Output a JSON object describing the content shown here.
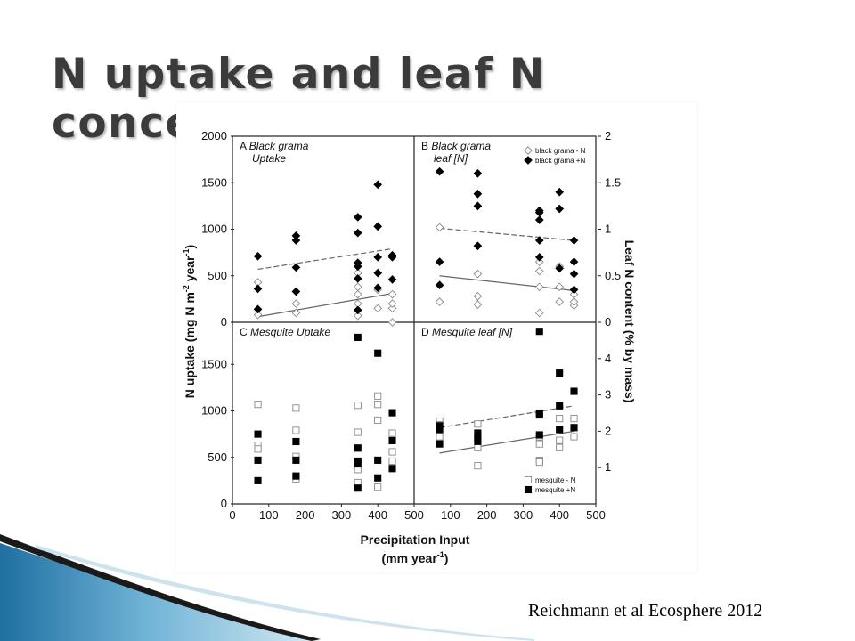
{
  "slide": {
    "title": "N uptake and leaf N concentration",
    "citation": "Reichmann et al Ecosphere 2012"
  },
  "chart_data": {
    "type": "scatter",
    "xlabel_line1": "Precipitation Input",
    "xlabel_line2": "(mm year",
    "xlabel_sup": "-1",
    "xlabel_end": ")",
    "ylabel_left": "N uptake (mg N m",
    "ylabel_left_sup1": "-2",
    "ylabel_left_mid": " year",
    "ylabel_left_sup2": "-1",
    "ylabel_left_end": ")",
    "ylabel_right": "Leaf N content (% by mass)",
    "x_ticks": [
      "0",
      "100",
      "200",
      "300",
      "400",
      "500"
    ],
    "xlim": [
      0,
      500
    ],
    "left_ticks_top": [
      "0",
      "500",
      "1000",
      "1500",
      "2000"
    ],
    "left_ticks_bottom": [
      "0",
      "500",
      "1000",
      "1500"
    ],
    "right_ticks_top": [
      "0",
      "0.5",
      "1",
      "1.5",
      "2"
    ],
    "right_ticks_bottom": [
      "1",
      "2",
      "3",
      "4"
    ],
    "panels": [
      {
        "id": "A",
        "letter": "A",
        "title_line1": "Black grama",
        "title_line2": "Uptake",
        "ylim": [
          0,
          2000
        ],
        "series": [
          {
            "name": "black grama - N",
            "marker": "open-diamond",
            "points": [
              [
                70,
                80
              ],
              [
                70,
                430
              ],
              [
                175,
                100
              ],
              [
                175,
                200
              ],
              [
                345,
                70
              ],
              [
                345,
                200
              ],
              [
                345,
                300
              ],
              [
                345,
                380
              ],
              [
                345,
                530
              ],
              [
                400,
                150
              ],
              [
                400,
                350
              ],
              [
                440,
                0
              ],
              [
                440,
                150
              ],
              [
                440,
                200
              ],
              [
                440,
                300
              ]
            ]
          },
          {
            "name": "black grama +N",
            "marker": "filled-diamond",
            "points": [
              [
                70,
                140
              ],
              [
                70,
                360
              ],
              [
                70,
                710
              ],
              [
                175,
                330
              ],
              [
                175,
                590
              ],
              [
                175,
                880
              ],
              [
                175,
                930
              ],
              [
                345,
                130
              ],
              [
                345,
                470
              ],
              [
                345,
                600
              ],
              [
                345,
                640
              ],
              [
                345,
                960
              ],
              [
                345,
                1130
              ],
              [
                400,
                370
              ],
              [
                400,
                530
              ],
              [
                400,
                700
              ],
              [
                400,
                1030
              ],
              [
                400,
                1480
              ],
              [
                440,
                460
              ],
              [
                440,
                700
              ],
              [
                440,
                720
              ]
            ]
          }
        ],
        "fit_lines": [
          {
            "style": "dashed",
            "points": [
              [
                70,
                570
              ],
              [
                440,
                790
              ]
            ]
          },
          {
            "style": "solid",
            "points": [
              [
                70,
                60
              ],
              [
                440,
                310
              ]
            ]
          }
        ]
      },
      {
        "id": "B",
        "letter": "B",
        "title_line1": "Black grama",
        "title_line2": "leaf [N]",
        "ylim": [
          0,
          2
        ],
        "series": [
          {
            "name": "black grama - N",
            "marker": "open-diamond",
            "points": [
              [
                70,
                1.02
              ],
              [
                70,
                0.22
              ],
              [
                175,
                0.52
              ],
              [
                175,
                0.28
              ],
              [
                175,
                0.19
              ],
              [
                345,
                0.1
              ],
              [
                345,
                0.38
              ],
              [
                345,
                0.55
              ],
              [
                345,
                0.65
              ],
              [
                400,
                0.22
              ],
              [
                400,
                0.38
              ],
              [
                400,
                0.6
              ],
              [
                440,
                0.18
              ],
              [
                440,
                0.22
              ],
              [
                440,
                0.3
              ]
            ]
          },
          {
            "name": "black grama +N",
            "marker": "filled-diamond",
            "points": [
              [
                70,
                1.62
              ],
              [
                70,
                0.65
              ],
              [
                70,
                0.4
              ],
              [
                175,
                1.6
              ],
              [
                175,
                1.38
              ],
              [
                175,
                1.25
              ],
              [
                175,
                0.82
              ],
              [
                345,
                1.2
              ],
              [
                345,
                1.18
              ],
              [
                345,
                1.1
              ],
              [
                345,
                0.88
              ],
              [
                345,
                0.7
              ],
              [
                400,
                1.4
              ],
              [
                400,
                1.22
              ],
              [
                400,
                0.58
              ],
              [
                440,
                0.88
              ],
              [
                440,
                0.65
              ],
              [
                440,
                0.52
              ],
              [
                440,
                0.35
              ]
            ]
          }
        ],
        "fit_lines": [
          {
            "style": "dashed",
            "points": [
              [
                70,
                1.01
              ],
              [
                440,
                0.88
              ]
            ]
          },
          {
            "style": "solid",
            "points": [
              [
                70,
                0.5
              ],
              [
                440,
                0.34
              ]
            ]
          }
        ],
        "legend": [
          "black grama - N",
          "black grama +N"
        ]
      },
      {
        "id": "C",
        "letter": "C",
        "title_line1": "Mesquite Uptake",
        "title_line2": "",
        "ylim": [
          0,
          2000
        ],
        "series": [
          {
            "name": "mesquite - N",
            "marker": "open-square",
            "points": [
              [
                70,
                1070
              ],
              [
                70,
                630
              ],
              [
                70,
                590
              ],
              [
                175,
                1030
              ],
              [
                175,
                790
              ],
              [
                175,
                510
              ],
              [
                175,
                270
              ],
              [
                345,
                1060
              ],
              [
                345,
                770
              ],
              [
                345,
                600
              ],
              [
                345,
                370
              ],
              [
                345,
                230
              ],
              [
                400,
                1160
              ],
              [
                400,
                1070
              ],
              [
                400,
                900
              ],
              [
                400,
                180
              ],
              [
                440,
                760
              ],
              [
                440,
                560
              ],
              [
                440,
                460
              ]
            ]
          },
          {
            "name": "mesquite +N",
            "marker": "filled-square",
            "points": [
              [
                70,
                750
              ],
              [
                70,
                470
              ],
              [
                70,
                250
              ],
              [
                175,
                670
              ],
              [
                175,
                470
              ],
              [
                175,
                300
              ],
              [
                345,
                1790
              ],
              [
                345,
                600
              ],
              [
                345,
                460
              ],
              [
                345,
                430
              ],
              [
                345,
                170
              ],
              [
                400,
                1620
              ],
              [
                400,
                470
              ],
              [
                400,
                280
              ],
              [
                440,
                980
              ],
              [
                440,
                680
              ],
              [
                440,
                380
              ]
            ]
          }
        ]
      },
      {
        "id": "D",
        "letter": "D",
        "title_line1": "Mesquite leaf [N]",
        "title_line2": "",
        "ylim": [
          0,
          5
        ],
        "series": [
          {
            "name": "mesquite - N",
            "marker": "open-square",
            "points": [
              [
                70,
                2.28
              ],
              [
                70,
                2.18
              ],
              [
                70,
                1.85
              ],
              [
                175,
                2.2
              ],
              [
                175,
                1.85
              ],
              [
                175,
                1.55
              ],
              [
                175,
                1.05
              ],
              [
                345,
                1.85
              ],
              [
                345,
                1.65
              ],
              [
                345,
                1.2
              ],
              [
                345,
                1.15
              ],
              [
                400,
                2.35
              ],
              [
                400,
                2.05
              ],
              [
                400,
                1.75
              ],
              [
                400,
                1.55
              ],
              [
                440,
                2.35
              ],
              [
                440,
                2.1
              ],
              [
                440,
                1.85
              ]
            ]
          },
          {
            "name": "mesquite +N",
            "marker": "filled-square",
            "points": [
              [
                70,
                2.15
              ],
              [
                70,
                2.05
              ],
              [
                70,
                1.65
              ],
              [
                175,
                1.95
              ],
              [
                175,
                1.8
              ],
              [
                175,
                1.72
              ],
              [
                345,
                4.75
              ],
              [
                345,
                2.5
              ],
              [
                345,
                2.45
              ],
              [
                345,
                1.9
              ],
              [
                400,
                3.6
              ],
              [
                400,
                2.7
              ],
              [
                400,
                2.05
              ],
              [
                440,
                3.1
              ],
              [
                440,
                2.1
              ]
            ]
          }
        ],
        "fit_lines": [
          {
            "style": "dashed",
            "points": [
              [
                70,
                2.1
              ],
              [
                440,
                2.7
              ]
            ]
          },
          {
            "style": "solid",
            "points": [
              [
                70,
                1.4
              ],
              [
                440,
                2.0
              ]
            ]
          }
        ],
        "legend": [
          "mesquite - N",
          "mesquite +N"
        ]
      }
    ]
  }
}
